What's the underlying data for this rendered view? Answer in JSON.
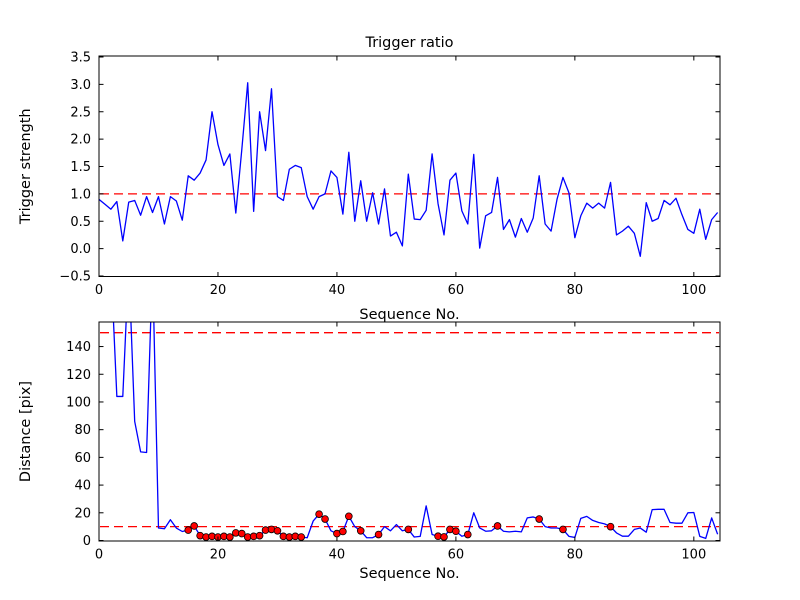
{
  "figure": {
    "background": "#ffffff",
    "line_color": "#0000ff",
    "threshold_color": "#ff0000",
    "marker_face_color": "#ff0000",
    "marker_edge_color": "#000000",
    "spine_color": "#000000"
  },
  "chart_data": [
    {
      "type": "line",
      "title": "Trigger ratio",
      "xlabel": "Sequence No.",
      "ylabel": "Trigger strength",
      "xlim": [
        0,
        104.4
      ],
      "ylim": [
        -0.5,
        3.5
      ],
      "xticks": [
        0,
        20,
        40,
        60,
        80,
        100
      ],
      "yticks": [
        -0.5,
        0.0,
        0.5,
        1.0,
        1.5,
        2.0,
        2.5,
        3.0,
        3.5
      ],
      "ytick_labels": [
        "−0.5",
        "0.0",
        "0.5",
        "1.0",
        "1.5",
        "2.0",
        "2.5",
        "3.0",
        "3.5"
      ],
      "grid": false,
      "legend": "none",
      "thresholds": [
        1.0
      ],
      "x_start": 0,
      "x_step": 1,
      "values": [
        0.9,
        0.81,
        0.72,
        0.86,
        0.14,
        0.85,
        0.88,
        0.61,
        0.95,
        0.66,
        0.95,
        0.45,
        0.95,
        0.87,
        0.52,
        1.33,
        1.25,
        1.38,
        1.62,
        2.5,
        1.9,
        1.52,
        1.73,
        0.65,
        1.8,
        3.03,
        0.68,
        2.5,
        1.79,
        2.92,
        0.95,
        0.88,
        1.45,
        1.52,
        1.48,
        0.95,
        0.72,
        0.95,
        1.0,
        1.42,
        1.3,
        0.63,
        1.76,
        0.5,
        1.24,
        0.5,
        1.02,
        0.45,
        1.09,
        0.23,
        0.3,
        0.05,
        1.36,
        0.54,
        0.53,
        0.7,
        1.73,
        0.82,
        0.25,
        1.25,
        1.38,
        0.69,
        0.45,
        1.72,
        0.01,
        0.6,
        0.66,
        1.3,
        0.35,
        0.53,
        0.21,
        0.55,
        0.3,
        0.56,
        1.33,
        0.45,
        0.32,
        0.9,
        1.3,
        1.02,
        0.2,
        0.6,
        0.83,
        0.74,
        0.83,
        0.74,
        1.21,
        0.25,
        0.32,
        0.41,
        0.28,
        -0.14,
        0.84,
        0.5,
        0.55,
        0.88,
        0.8,
        0.92,
        0.62,
        0.35,
        0.28,
        0.72,
        0.17,
        0.53,
        0.66
      ]
    },
    {
      "type": "line+scatter",
      "title": "",
      "xlabel": "Sequence No.",
      "ylabel": "Distance [pix]",
      "xlim": [
        0,
        104.4
      ],
      "ylim": [
        0,
        157
      ],
      "xticks": [
        0,
        20,
        40,
        60,
        80,
        100
      ],
      "yticks": [
        0,
        20,
        40,
        60,
        80,
        100,
        120,
        140
      ],
      "ytick_labels": [
        "0",
        "20",
        "40",
        "60",
        "80",
        "100",
        "120",
        "140"
      ],
      "grid": false,
      "legend": "none",
      "thresholds": [
        150,
        10
      ],
      "clipped_above": 157,
      "x_start": 0,
      "x_step": 1,
      "values": [
        200,
        200,
        200,
        104,
        104,
        200,
        86,
        64,
        63.5,
        200,
        9,
        8.5,
        15,
        9,
        6.5,
        7.5,
        10.5,
        3.5,
        2.5,
        3,
        2.5,
        3,
        2.5,
        5.5,
        5,
        2.5,
        3,
        3.5,
        7.5,
        8,
        7,
        3,
        2.5,
        3,
        2.5,
        2,
        14,
        19,
        15.5,
        7,
        5,
        6.5,
        17.5,
        10,
        7,
        2,
        2,
        4.3,
        10,
        7,
        11.5,
        7,
        8,
        2.5,
        3,
        25,
        4.3,
        3.1,
        2.6,
        8,
        6.7,
        3.1,
        4.3,
        20,
        9.1,
        6.7,
        7,
        10.5,
        6.7,
        6.2,
        6.7,
        6.2,
        16.3,
        17,
        15.5,
        10,
        9,
        9,
        8,
        3,
        2.2,
        16,
        17.4,
        14.5,
        13,
        12,
        10,
        5.5,
        3.1,
        3.1,
        8,
        9,
        6,
        22.3,
        22.5,
        22.5,
        13,
        12.5,
        12.5,
        20,
        20.2,
        3,
        1.5,
        16.3,
        4.5
      ],
      "marker_x": [
        15,
        16,
        17,
        18,
        19,
        20,
        21,
        22,
        23,
        24,
        25,
        26,
        27,
        28,
        29,
        30,
        31,
        32,
        33,
        34,
        37,
        38,
        40,
        41,
        42,
        44,
        47,
        52,
        57,
        58,
        59,
        60,
        62,
        67,
        74,
        78,
        86
      ]
    }
  ]
}
